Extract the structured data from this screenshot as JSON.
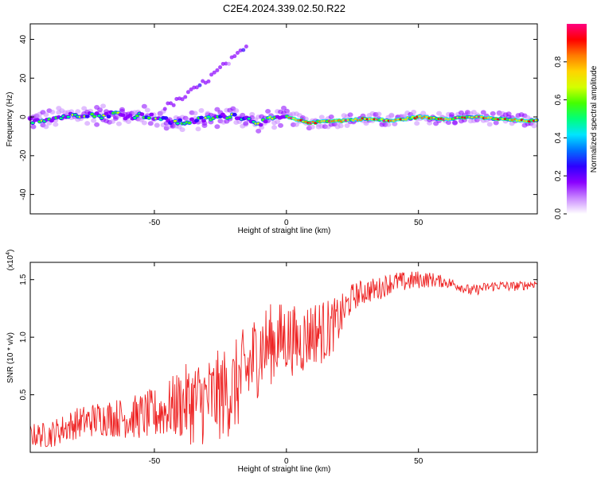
{
  "title": "C2E4.2024.339.02.50.R22",
  "chart_data": [
    {
      "type": "heatmap",
      "name": "spectrogram",
      "xlabel": "Height of straight line (km)",
      "ylabel": "Frequency (Hz)",
      "xlim": [
        -97,
        95
      ],
      "ylim": [
        -50,
        48
      ],
      "xticks": [
        -50,
        0,
        50
      ],
      "xtick_labels": [
        "-50",
        "0",
        "50"
      ],
      "yticks": [
        -40,
        -20,
        0,
        20,
        40
      ],
      "ytick_labels": [
        "-40",
        "-20",
        "0",
        "20",
        "40"
      ],
      "ridge": {
        "x": [
          -97,
          -90,
          -85,
          -80,
          -75,
          -70,
          -65,
          -60,
          -55,
          -50,
          -45,
          -40,
          -35,
          -30,
          -25,
          -20,
          -15,
          -10,
          -5,
          0,
          5,
          10,
          15,
          20,
          30,
          40,
          50,
          60,
          70,
          80,
          90,
          95
        ],
        "y": [
          -2,
          -1,
          0,
          1,
          1.5,
          0.5,
          2,
          0,
          1,
          0,
          -2,
          -3,
          -2,
          -1,
          0,
          1,
          -1,
          -3,
          -1,
          0,
          -2,
          -3,
          -2,
          -2,
          -1,
          -2,
          0,
          -1,
          0,
          -1,
          -2,
          -2
        ]
      },
      "faint_branch": {
        "x": [
          -46,
          -40,
          -35,
          -30,
          -25,
          -20,
          -15
        ],
        "y": [
          5,
          9,
          14,
          19,
          25,
          30,
          36
        ]
      },
      "grid": false,
      "colorbar": {
        "label": "Normalized spectral amplitude",
        "range": [
          0,
          1
        ],
        "ticks": [
          0.0,
          0.2,
          0.4,
          0.6,
          0.8
        ],
        "tick_labels": [
          "0.0",
          "0.2",
          "0.4",
          "0.6",
          "0.8"
        ],
        "colors": [
          "#ffffff",
          "#c988ff",
          "#8a00ff",
          "#2d00ff",
          "#0070ff",
          "#00e5ff",
          "#00ff7a",
          "#44ff00",
          "#d4ff00",
          "#ffd400",
          "#ff7b00",
          "#ff0000",
          "#ff0080"
        ]
      }
    },
    {
      "type": "line",
      "name": "snr",
      "xlabel": "Height of straight line (km)",
      "ylabel": "SNR (10 * v/v)",
      "yscale_label": "(x10",
      "yscale_exp": "4",
      "yscale_suffix": ")",
      "xlim": [
        -97,
        95
      ],
      "ylim": [
        0.0,
        1.65
      ],
      "xticks": [
        -50,
        0,
        50
      ],
      "xtick_labels": [
        "-50",
        "0",
        "50"
      ],
      "yticks": [
        0.5,
        1.0,
        1.5
      ],
      "ytick_labels": [
        "0.5",
        "1.0",
        "1.5"
      ],
      "color": "#ee2222",
      "grid": false,
      "trend": {
        "x": [
          -97,
          -90,
          -80,
          -70,
          -60,
          -50,
          -40,
          -30,
          -20,
          -15,
          -10,
          -5,
          0,
          5,
          10,
          15,
          20,
          25,
          30,
          35,
          40,
          45,
          50,
          55,
          60,
          65,
          70,
          75,
          80,
          85,
          90,
          95
        ],
        "y": [
          0.15,
          0.15,
          0.25,
          0.3,
          0.3,
          0.33,
          0.42,
          0.45,
          0.55,
          0.7,
          0.9,
          0.95,
          1.0,
          0.95,
          1.05,
          1.05,
          1.15,
          1.35,
          1.4,
          1.42,
          1.48,
          1.48,
          1.5,
          1.5,
          1.48,
          1.45,
          1.4,
          1.43,
          1.45,
          1.44,
          1.45,
          1.47
        ]
      },
      "amplitude": {
        "x": [
          -97,
          -60,
          -45,
          -35,
          -25,
          -15,
          -5,
          5,
          15,
          25,
          35,
          50,
          60,
          95
        ],
        "y": [
          0.1,
          0.18,
          0.25,
          0.38,
          0.4,
          0.42,
          0.35,
          0.3,
          0.28,
          0.12,
          0.1,
          0.08,
          0.05,
          0.04
        ]
      }
    }
  ]
}
